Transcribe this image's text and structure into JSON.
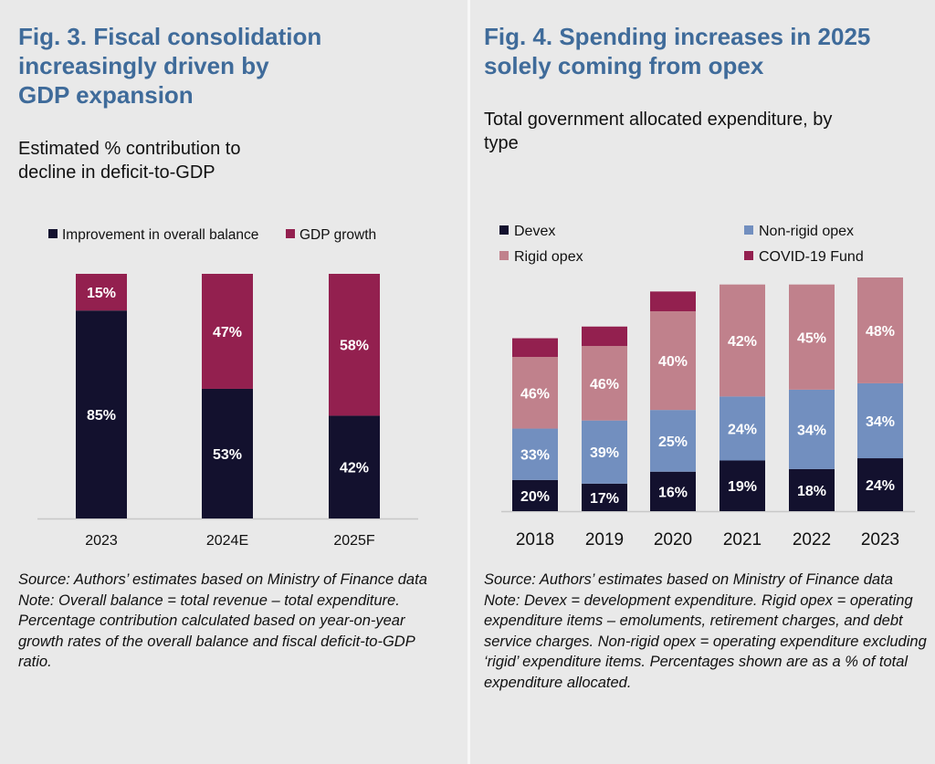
{
  "fig3": {
    "title_lines": [
      "Fig. 3. Fiscal consolidation",
      "increasingly driven by",
      "GDP expansion"
    ],
    "subtitle_lines": [
      "Estimated % contribution to",
      "decline in deficit-to-GDP"
    ],
    "source": "Source: Authors’ estimates based on Ministry of Finance data",
    "note": "Note: Overall balance = total revenue – total expenditure. Percentage contribution calculated based on year-on-year growth rates of the overall balance and fiscal deficit-to-GDP ratio."
  },
  "fig4": {
    "title_lines": [
      "Fig. 4. Spending increases in 2025",
      "solely coming from opex"
    ],
    "subtitle_lines": [
      "Total government allocated expenditure, by",
      "type"
    ],
    "source": "Source: Authors’ estimates based on Ministry of Finance data",
    "note": "Note: Devex = development expenditure. Rigid opex = operating expenditure items – emoluments, retirement charges, and debt service charges. Non-rigid opex = operating expenditure excluding ‘rigid’ expenditure items. Percentages shown are as a % of total expenditure allocated."
  },
  "chart_data": [
    {
      "type": "bar",
      "stacked": true,
      "categories": [
        "2023",
        "2024E",
        "2025F"
      ],
      "series": [
        {
          "name": "Improvement in overall balance",
          "values": [
            85,
            53,
            42
          ],
          "labels": [
            "85%",
            "53%",
            "42%"
          ],
          "color": "#13112e"
        },
        {
          "name": "GDP growth",
          "values": [
            15,
            47,
            58
          ],
          "labels": [
            "15%",
            "47%",
            "58%"
          ],
          "color": "#93204f"
        }
      ],
      "legend": "top",
      "grid": false,
      "ylim": [
        0,
        100
      ]
    },
    {
      "type": "bar",
      "stacked": true,
      "categories": [
        "2018",
        "2019",
        "2020",
        "2021",
        "2022",
        "2023"
      ],
      "total_relative": [
        74,
        79,
        94,
        97,
        97,
        100
      ],
      "series": [
        {
          "name": "Devex",
          "values": [
            20,
            17,
            16,
            19,
            18,
            24
          ],
          "labels": [
            "20%",
            "17%",
            "16%",
            "19%",
            "18%",
            "24%"
          ],
          "color": "#13112e"
        },
        {
          "name": "Non-rigid opex",
          "values": [
            33,
            39,
            25,
            24,
            34,
            34
          ],
          "labels": [
            "33%",
            "39%",
            "25%",
            "24%",
            "34%",
            "34%"
          ],
          "color": "#728fbf"
        },
        {
          "name": "Rigid opex",
          "values": [
            46,
            46,
            40,
            42,
            45,
            48
          ],
          "labels": [
            "46%",
            "46%",
            "40%",
            "42%",
            "45%",
            "48%"
          ],
          "color": "#c0818c"
        },
        {
          "name": "COVID-19 Fund",
          "values": [
            12,
            12,
            8,
            0,
            0,
            0
          ],
          "labels": [
            "",
            "",
            "",
            "",
            "",
            ""
          ],
          "color": "#93204f"
        }
      ],
      "legend": "top",
      "grid": false
    }
  ]
}
